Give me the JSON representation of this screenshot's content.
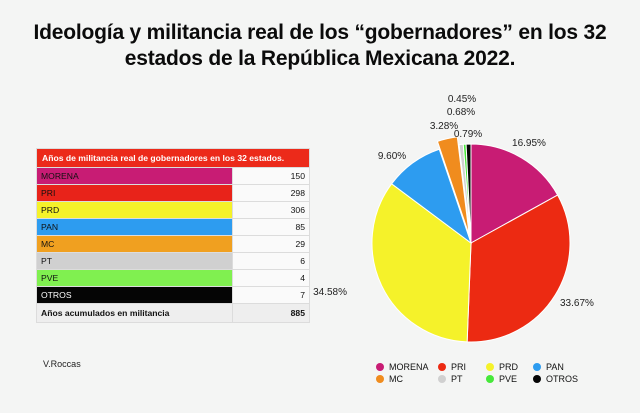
{
  "title_line1": "Ideología y militancia real de los “gobernadores” en los 32",
  "title_line2": "estados de la República Mexicana 2022.",
  "author": "V.Roccas",
  "table": {
    "header": "Años de militancia real de gobernadores en los 32 estados.",
    "rows": [
      {
        "party": "MORENA",
        "value": "150",
        "color": "#c81c74",
        "text_color": "#111111"
      },
      {
        "party": "PRI",
        "value": "298",
        "color": "#e8231a",
        "text_color": "#111111"
      },
      {
        "party": "PRD",
        "value": "306",
        "color": "#f5f22a",
        "text_color": "#111111"
      },
      {
        "party": "PAN",
        "value": "85",
        "color": "#2d9cf0",
        "text_color": "#111111"
      },
      {
        "party": "MC",
        "value": "29",
        "color": "#f0a020",
        "text_color": "#111111"
      },
      {
        "party": "PT",
        "value": "6",
        "color": "#d0d0d0",
        "text_color": "#111111"
      },
      {
        "party": "PVE",
        "value": "4",
        "color": "#80f050",
        "text_color": "#111111"
      },
      {
        "party": "OTROS",
        "value": "7",
        "color": "#050505",
        "text_color": "#ffffff"
      }
    ],
    "total_label": "Años acumulados en militancia",
    "total_value": "885"
  },
  "chart_data": {
    "type": "pie",
    "title": "Ideología y militancia real de los “gobernadores” en los 32 estados de la República Mexicana 2022.",
    "categories": [
      "MORENA",
      "PRI",
      "PRD",
      "PAN",
      "MC",
      "PT",
      "PVE",
      "OTROS"
    ],
    "values": [
      150,
      298,
      306,
      85,
      29,
      6,
      4,
      7
    ],
    "percent_labels": [
      "16.95%",
      "33.67%",
      "34.58%",
      "9.60%",
      "3.28%",
      "0.68%",
      "0.45%",
      "0.79%"
    ],
    "colors": [
      "#c81c74",
      "#ec2a12",
      "#f5f22a",
      "#2d9cf0",
      "#f08c1e",
      "#d0d0d0",
      "#46e83a",
      "#050505"
    ],
    "exploded": [
      "MC"
    ],
    "legend": {
      "position": "bottom",
      "entries": [
        "MORENA",
        "PRI",
        "PRD",
        "PAN",
        "MC",
        "PT",
        "PVE",
        "OTROS"
      ]
    }
  }
}
